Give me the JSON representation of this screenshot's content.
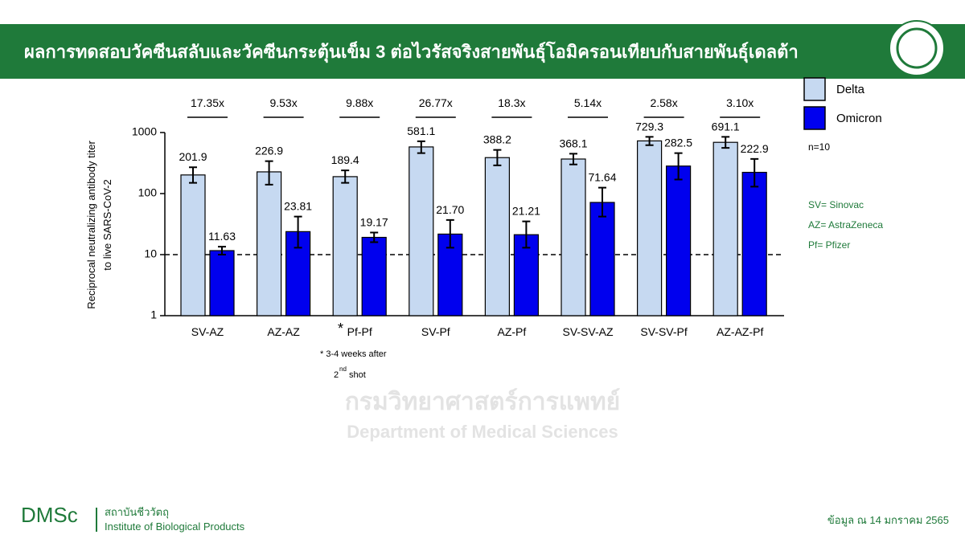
{
  "header": {
    "title": "ผลการทดสอบวัคซีนสลับและวัคซีนกระตุ้นเข็ม 3 ต่อไวรัสจริงสายพันธุ์โอมิครอนเทียบกับสายพันธุ์เดลต้า"
  },
  "chart_data": {
    "type": "bar",
    "log_scale": true,
    "y_label_lines": [
      "Reciprocal neutralizing antibody titer",
      "to live SARS-CoV-2"
    ],
    "categories": [
      "SV-AZ",
      "AZ-AZ",
      "Pf-Pf",
      "SV-Pf",
      "AZ-Pf",
      "SV-SV-AZ",
      "SV-SV-Pf",
      "AZ-AZ-Pf"
    ],
    "fold_labels": [
      "17.35x",
      "9.53x",
      "9.88x",
      "26.77x",
      "18.3x",
      "5.14x",
      "2.58x",
      "3.10x"
    ],
    "series": [
      {
        "name": "Delta",
        "color": "#c6d9f1",
        "values": [
          201.9,
          226.9,
          189.4,
          581.1,
          388.2,
          368.1,
          729.3,
          691.1
        ],
        "errors": [
          [
            150,
            270
          ],
          [
            140,
            340
          ],
          [
            150,
            240
          ],
          [
            460,
            720
          ],
          [
            290,
            520
          ],
          [
            300,
            450
          ],
          [
            620,
            850
          ],
          [
            560,
            850
          ]
        ]
      },
      {
        "name": "Omicron",
        "color": "#0000ee",
        "values": [
          11.63,
          23.81,
          19.17,
          21.7,
          21.21,
          71.64,
          282.5,
          222.9
        ],
        "value_labels": [
          "11.63",
          "23.81",
          "19.17",
          "21.70",
          "21.21",
          "71.64",
          "282.5",
          "222.9"
        ],
        "errors": [
          [
            10,
            13.5
          ],
          [
            13,
            42
          ],
          [
            16,
            23
          ],
          [
            13,
            37
          ],
          [
            13,
            35
          ],
          [
            42,
            125
          ],
          [
            170,
            460
          ],
          [
            130,
            370
          ]
        ]
      }
    ],
    "ylim": [
      1,
      1000
    ],
    "yticks": [
      1,
      10,
      100,
      1000
    ],
    "reference_line": 10,
    "note_marker": "*",
    "note": "* 3-4 weeks after",
    "note_2": [
      "2",
      "nd",
      "shot"
    ],
    "n_label": "n=10",
    "abbreviations": [
      "SV= Sinovac",
      "AZ= AstraZeneca",
      "Pf= Pfizer"
    ]
  },
  "watermark": [
    "กรมวิทยาศาสตร์การแพทย์",
    "Department of Medical Sciences"
  ],
  "footer": {
    "brand": "DMSc",
    "institute_th": "สถาบันชีววัตถุ",
    "institute_en": "Institute of Biological Products",
    "date": "ข้อมูล ณ 14 มกราคม 2565"
  }
}
